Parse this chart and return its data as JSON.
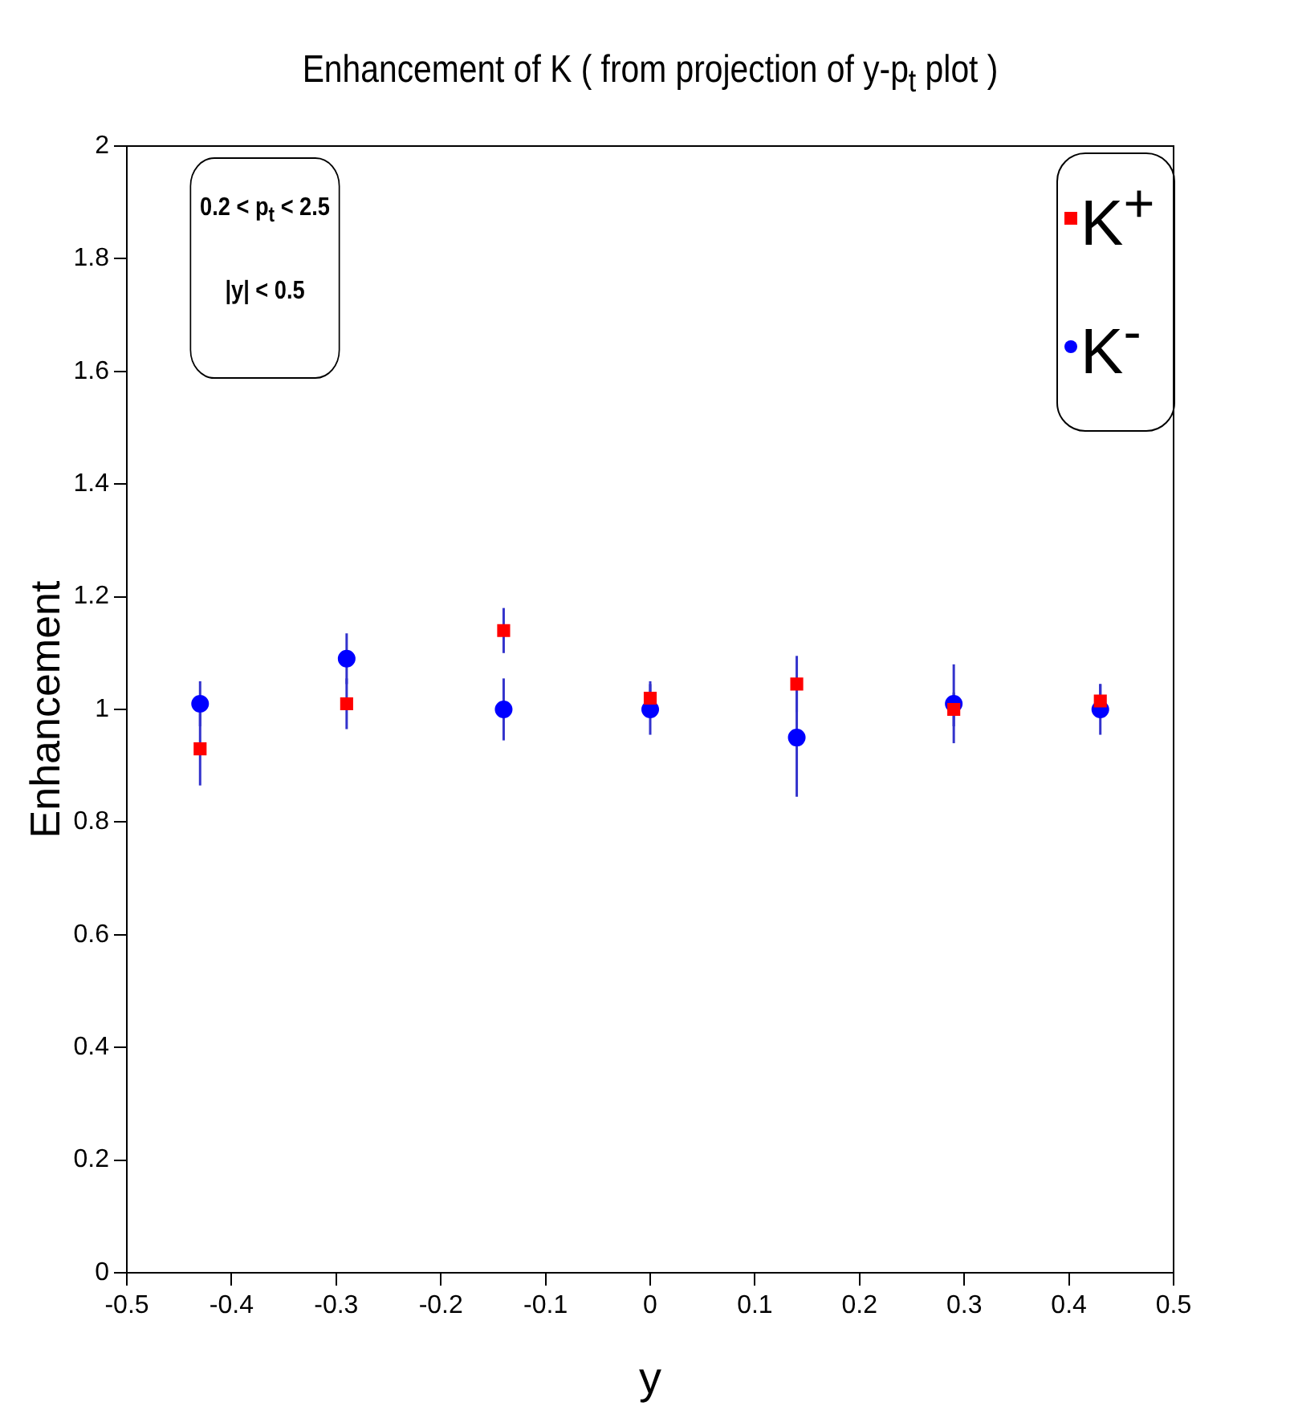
{
  "chart_data": {
    "type": "scatter",
    "title": "Enhancement of K ( from projection of y-p$_{t}$ plot )",
    "xlabel": "y",
    "ylabel": "Enhancement",
    "xlim": [
      -0.5,
      0.5
    ],
    "xticks": [
      -0.5,
      -0.4,
      -0.3,
      -0.2,
      -0.1,
      0,
      0.1,
      0.2,
      0.3,
      0.4,
      0.5
    ],
    "ylim": [
      0,
      2
    ],
    "yticks": [
      0,
      0.2,
      0.4,
      0.6,
      0.8,
      1,
      1.2,
      1.4,
      1.6,
      1.8,
      2
    ],
    "grid": false,
    "legend": "top right",
    "annotations": [
      "0.2 < p$_{t}$ < 2.5",
      "|y| < 0.5"
    ],
    "series": [
      {
        "name": "K$^{+}$",
        "color": "#ff0000",
        "marker": "square",
        "x": [
          -0.43,
          -0.29,
          -0.14,
          0,
          0.14,
          0.29,
          0.43
        ],
        "values": [
          0.93,
          1.01,
          1.14,
          1.02,
          1.045,
          1.0,
          1.015
        ],
        "errors": [
          0.065,
          0.045,
          0.04,
          0.03,
          0.05,
          0.03,
          0.03
        ]
      },
      {
        "name": "K$^{-}$",
        "color": "#0000ff",
        "marker": "circle",
        "x": [
          -0.43,
          -0.29,
          -0.14,
          0,
          0.14,
          0.29,
          0.43
        ],
        "values": [
          1.01,
          1.09,
          1.0,
          1.0,
          0.95,
          1.01,
          1.0
        ],
        "errors": [
          0.04,
          0.045,
          0.055,
          0.045,
          0.105,
          0.07,
          0.045
        ]
      }
    ]
  }
}
